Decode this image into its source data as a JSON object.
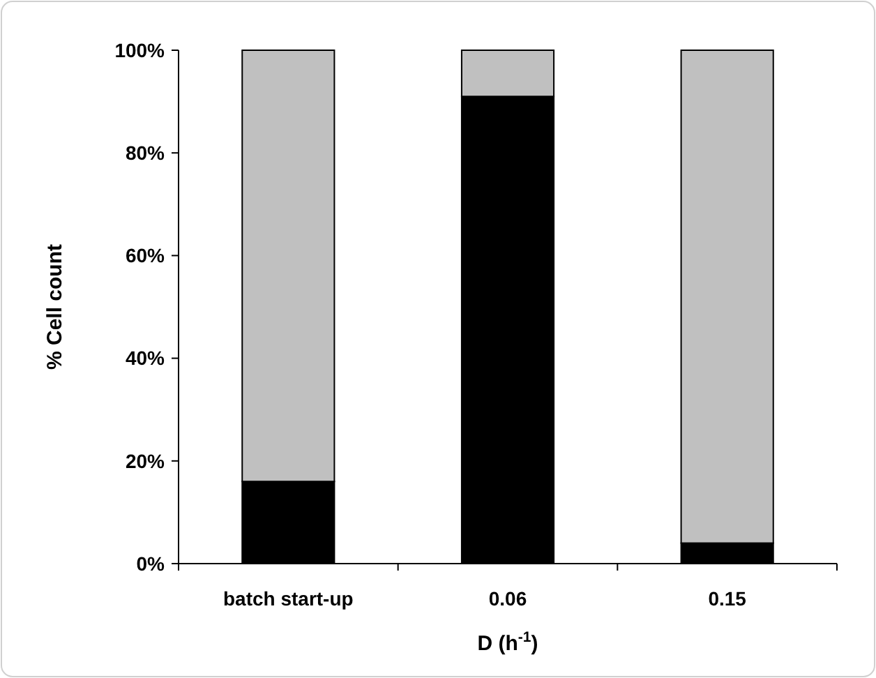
{
  "chart_data": {
    "type": "bar",
    "stacked": true,
    "ylabel": "% Cell count",
    "xlabel": "D (h$^{-1}$)",
    "categories": [
      "batch start-up",
      "0.06",
      "0.15"
    ],
    "series": [
      {
        "color": "#000000",
        "values": [
          16,
          91,
          4
        ]
      },
      {
        "color": "#c0c0c0",
        "values": [
          84,
          9,
          96
        ]
      }
    ],
    "ylim": [
      0,
      100
    ],
    "yticks": [
      {
        "value": 0,
        "label": "0%"
      },
      {
        "value": 20,
        "label": "20%"
      },
      {
        "value": 40,
        "label": "40%"
      },
      {
        "value": 60,
        "label": "60%"
      },
      {
        "value": 80,
        "label": "80%"
      },
      {
        "value": 100,
        "label": "100%"
      }
    ],
    "grid": false
  }
}
